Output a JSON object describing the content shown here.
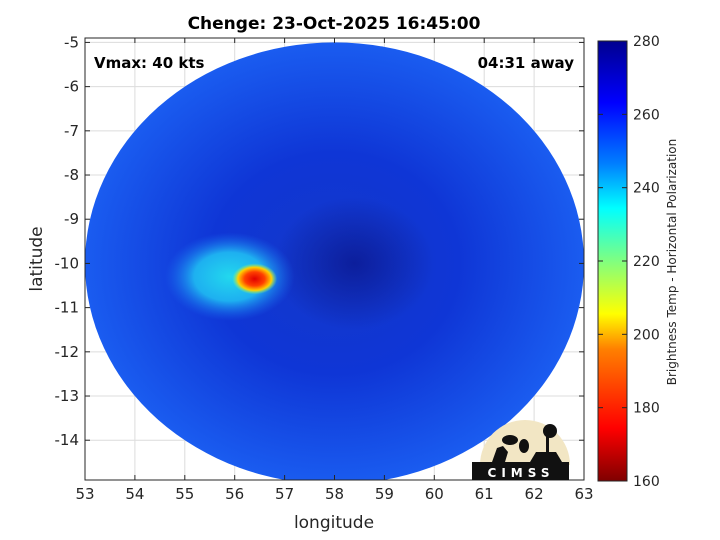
{
  "chart_data": {
    "type": "heatmap",
    "title": "Chenge: 23-Oct-2025 16:45:00",
    "xlabel": "longitude",
    "ylabel": "latitude",
    "xlim": [
      53,
      63
    ],
    "ylim": [
      -14.9,
      -4.9
    ],
    "xticks": [
      53,
      54,
      55,
      56,
      57,
      58,
      59,
      60,
      61,
      62,
      63
    ],
    "yticks": [
      -5,
      -6,
      -7,
      -8,
      -9,
      -10,
      -11,
      -12,
      -13,
      -14
    ],
    "annotations": {
      "left": "Vmax: 40 kts",
      "right": "04:31 away"
    },
    "grid": true,
    "colorbar": {
      "label": "Brightness Temp - Horizontal Polarization",
      "range": [
        160,
        280
      ],
      "ticks": [
        280,
        260,
        240,
        220,
        200,
        180,
        160
      ],
      "colormap": [
        "#7f0000",
        "#ff0000",
        "#ff8000",
        "#ffff00",
        "#80ff80",
        "#00ffff",
        "#0080ff",
        "#0000ff",
        "#00008f"
      ]
    },
    "features": [
      {
        "kind": "disk",
        "center_lon": 58.0,
        "center_lat": -10.0,
        "radius_deg": 5.0,
        "value": 262
      },
      {
        "kind": "eye",
        "center_lon": 58.4,
        "center_lat": -10.0,
        "value": 266
      },
      {
        "kind": "convection",
        "center_lon": 55.9,
        "center_lat": -10.3,
        "value": 232
      },
      {
        "kind": "convection-core",
        "center_lon": 56.4,
        "center_lat": -10.35,
        "value": 180
      }
    ]
  },
  "logo": {
    "text": "CIMSS"
  }
}
